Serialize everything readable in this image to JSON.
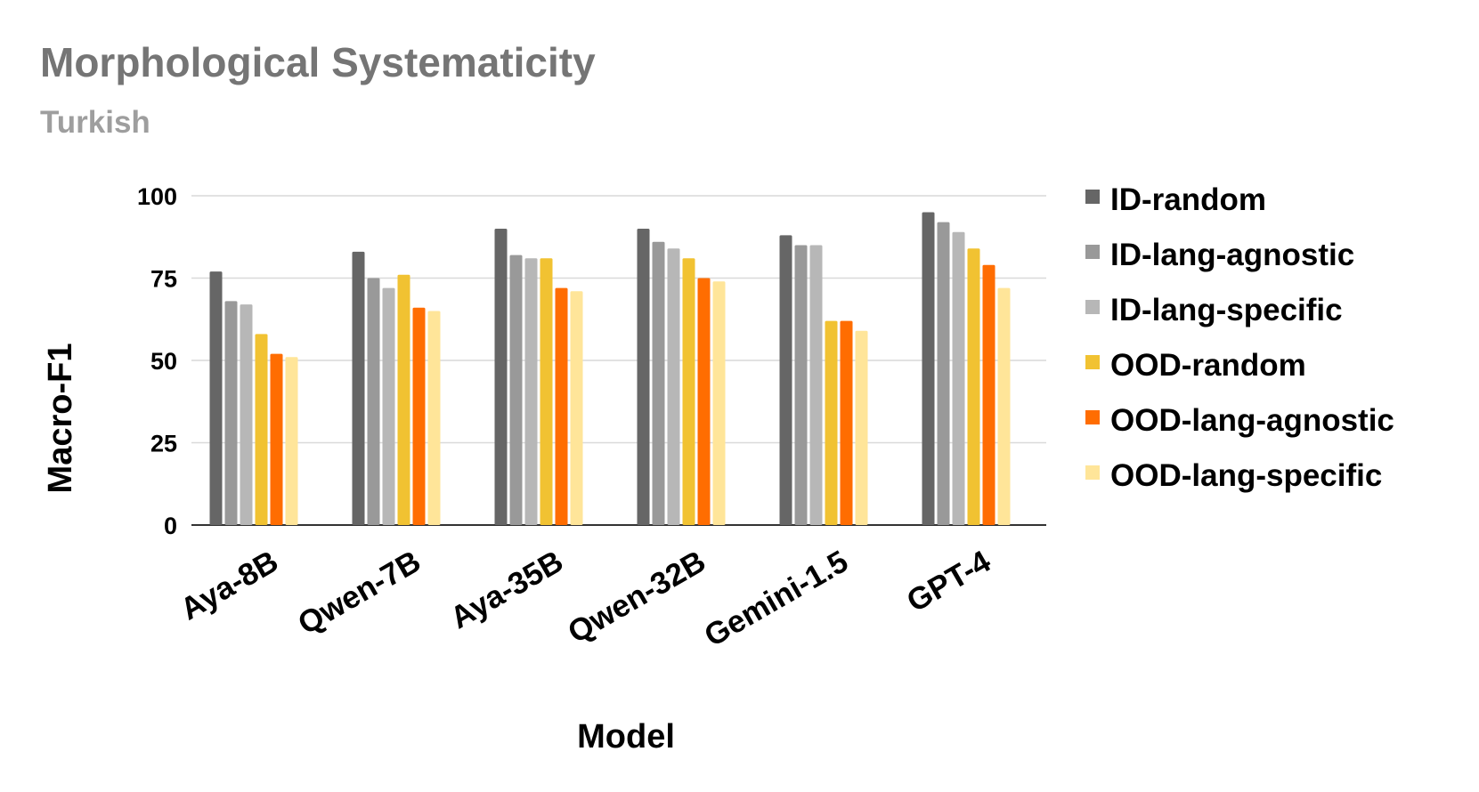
{
  "chart_data": {
    "type": "bar",
    "title": "Morphological Systematicity",
    "subtitle": "Turkish",
    "xlabel": "Model",
    "ylabel": "Macro-F1",
    "ylim": [
      0,
      100
    ],
    "yticks": [
      0,
      25,
      50,
      75,
      100
    ],
    "grid": true,
    "legend_position": "right",
    "categories": [
      "Aya-8B",
      "Qwen-7B",
      "Aya-35B",
      "Qwen-32B",
      "Gemini-1.5",
      "GPT-4"
    ],
    "series": [
      {
        "name": "ID-random",
        "color": "#666666",
        "values": [
          77,
          83,
          90,
          90,
          88,
          95
        ]
      },
      {
        "name": "ID-lang-agnostic",
        "color": "#999999",
        "values": [
          68,
          75,
          82,
          86,
          85,
          92
        ]
      },
      {
        "name": "ID-lang-specific",
        "color": "#b7b7b7",
        "values": [
          67,
          72,
          81,
          84,
          85,
          89
        ]
      },
      {
        "name": "OOD-random",
        "color": "#f1c232",
        "values": [
          58,
          76,
          81,
          81,
          62,
          84
        ]
      },
      {
        "name": "OOD-lang-agnostic",
        "color": "#ff6d01",
        "values": [
          52,
          66,
          72,
          75,
          62,
          79
        ]
      },
      {
        "name": "OOD-lang-specific",
        "color": "#ffe599",
        "values": [
          51,
          65,
          71,
          74,
          59,
          72
        ]
      }
    ],
    "colors": {
      "title": "#757575",
      "subtitle": "#9e9e9e",
      "gridline": "#d9d9d9",
      "axis_line": "#333333"
    }
  }
}
